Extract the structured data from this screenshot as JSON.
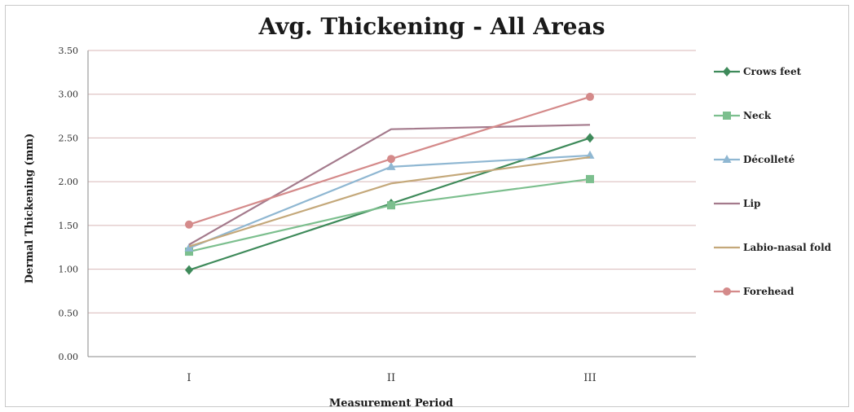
{
  "chart_data": {
    "type": "line",
    "title": "Avg. Thickening - All Areas",
    "xlabel": "Measurement Period",
    "ylabel": "Dermal Thickening (mm)",
    "categories": [
      "I",
      "II",
      "III"
    ],
    "ylim": [
      0,
      3.5
    ],
    "yticks": [
      "0.00",
      "0.50",
      "1.00",
      "1.50",
      "2.00",
      "2.50",
      "3.00",
      "3.50"
    ],
    "grid": true,
    "legend_position": "right",
    "series": [
      {
        "name": "Crows feet",
        "values": [
          0.99,
          1.75,
          2.5
        ],
        "color": "#3e8a5a",
        "marker": "diamond"
      },
      {
        "name": "Neck",
        "values": [
          1.2,
          1.73,
          2.03
        ],
        "color": "#7cbf8e",
        "marker": "square"
      },
      {
        "name": "Décolleté",
        "values": [
          1.24,
          2.17,
          2.3
        ],
        "color": "#8fb7d2",
        "marker": "triangle"
      },
      {
        "name": "Lip",
        "values": [
          1.28,
          2.6,
          2.65
        ],
        "color": "#a47a8c",
        "marker": "none"
      },
      {
        "name": "Labio-nasal fold",
        "values": [
          1.26,
          1.98,
          2.28
        ],
        "color": "#c4a87a",
        "marker": "none"
      },
      {
        "name": "Forehead",
        "values": [
          1.51,
          2.26,
          2.97
        ],
        "color": "#d48a8a",
        "marker": "circle"
      }
    ]
  }
}
